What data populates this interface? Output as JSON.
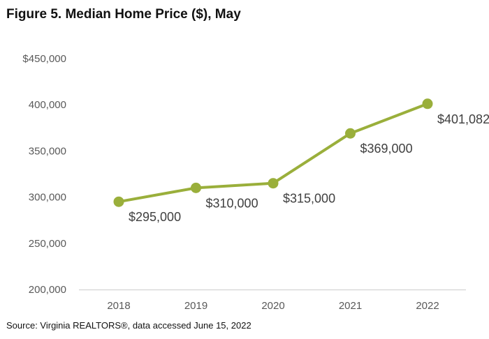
{
  "figure": {
    "title": "Figure 5. Median Home Price ($), May",
    "source": "Source: Virginia REALTORS®, data accessed June 15, 2022"
  },
  "colors": {
    "series": "#9aaf3b",
    "axis": "#d9d9d9",
    "tick_text": "#595959",
    "label_text": "#404040"
  },
  "chart_data": {
    "type": "line",
    "title": "Figure 5. Median Home Price ($), May",
    "xlabel": "",
    "ylabel": "",
    "categories": [
      "2018",
      "2019",
      "2020",
      "2021",
      "2022"
    ],
    "series": [
      {
        "name": "Median Home Price",
        "values": [
          295000,
          310000,
          315000,
          369000,
          401082
        ],
        "labels": [
          "$295,000",
          "$310,000",
          "$315,000",
          "$369,000",
          "$401,082"
        ]
      }
    ],
    "ylim": [
      200000,
      450000
    ],
    "yticks": [
      200000,
      250000,
      300000,
      350000,
      400000,
      450000
    ],
    "ytick_labels": [
      "200,000",
      "250,000",
      "300,000",
      "350,000",
      "400,000",
      "$450,000"
    ],
    "grid": false,
    "legend": "none"
  }
}
